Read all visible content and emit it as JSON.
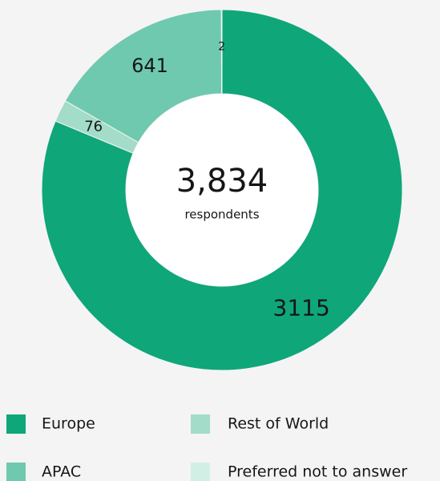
{
  "chart_data": {
    "type": "donut",
    "categories": [
      "Europe",
      "Rest of World",
      "APAC",
      "Preferred not to answer"
    ],
    "values": [
      3115,
      76,
      641,
      2
    ],
    "colors": [
      "#0fa67a",
      "#a3dcc9",
      "#6fc9ae",
      "#d2efe5"
    ],
    "total": {
      "value": 3834,
      "label": "3,834"
    },
    "total_caption": "respondents",
    "legend_order": [
      0,
      1,
      2,
      3
    ]
  }
}
